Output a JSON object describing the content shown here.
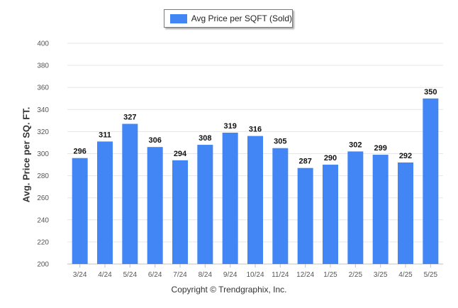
{
  "legend": {
    "label": "Avg Price per SQFT (Sold)"
  },
  "footer": {
    "copyright": "Copyright © Trendgraphix, Inc."
  },
  "colors": {
    "bar": "#4285f4",
    "grid": "#e6e6e6",
    "axis": "#c0c0c0"
  },
  "chart_data": {
    "type": "bar",
    "categories": [
      "3/24",
      "4/24",
      "5/24",
      "6/24",
      "7/24",
      "8/24",
      "9/24",
      "10/24",
      "11/24",
      "12/24",
      "1/25",
      "2/25",
      "3/25",
      "4/25",
      "5/25"
    ],
    "series": [
      {
        "name": "Avg Price per SQFT (Sold)",
        "values": [
          296,
          311,
          327,
          306,
          294,
          308,
          319,
          316,
          305,
          287,
          290,
          302,
          299,
          292,
          350
        ]
      }
    ],
    "ylabel": "Avg. Price per SQ. FT.",
    "xlabel": "",
    "ylim": [
      200,
      400
    ],
    "yticks": [
      200,
      220,
      240,
      260,
      280,
      300,
      320,
      340,
      360,
      380,
      400
    ],
    "grid": true,
    "legend_position": "top-center",
    "data_labels": true
  }
}
